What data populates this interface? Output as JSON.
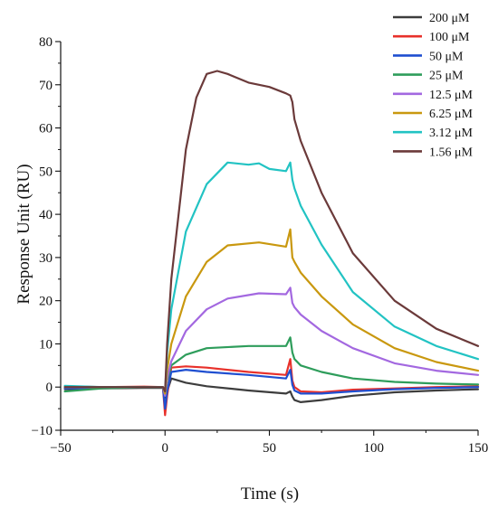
{
  "chart_data": {
    "type": "line",
    "xlabel": "Time (s)",
    "ylabel": "Response Unit (RU)",
    "xlim": [
      -50,
      150
    ],
    "ylim": [
      -10,
      80
    ],
    "xticks": [
      -50,
      0,
      50,
      100,
      150
    ],
    "yticks": [
      -10,
      0,
      10,
      20,
      30,
      40,
      50,
      60,
      70,
      80
    ],
    "grid": false,
    "legend_position": "top-right",
    "series": [
      {
        "name": "200 μM",
        "color": "#3d3d3d",
        "x": [
          -48,
          -30,
          -10,
          -1,
          0,
          1,
          3,
          10,
          20,
          40,
          58,
          60,
          61,
          62,
          65,
          75,
          90,
          110,
          130,
          150
        ],
        "y": [
          -0.5,
          -0.3,
          -0.2,
          -0.2,
          -2.5,
          -1.0,
          2.0,
          1.0,
          0.2,
          -0.8,
          -1.5,
          -1.0,
          -2.2,
          -3.0,
          -3.5,
          -3.0,
          -2.0,
          -1.2,
          -0.8,
          -0.5
        ]
      },
      {
        "name": "100 μM",
        "color": "#e8312b",
        "x": [
          -48,
          -30,
          -10,
          -1,
          0,
          1,
          3,
          10,
          20,
          40,
          58,
          60,
          61,
          62,
          65,
          75,
          90,
          110,
          130,
          150
        ],
        "y": [
          0.2,
          0.0,
          0.1,
          0.0,
          -6.5,
          -2.0,
          4.5,
          4.8,
          4.5,
          3.5,
          2.8,
          6.5,
          1.5,
          0.0,
          -1.0,
          -1.2,
          -0.6,
          -0.3,
          0.0,
          0.2
        ]
      },
      {
        "name": "50 μM",
        "color": "#1f4fd1",
        "x": [
          -48,
          -30,
          -10,
          -1,
          0,
          1,
          3,
          10,
          20,
          40,
          58,
          60,
          61,
          62,
          65,
          75,
          90,
          110,
          130,
          150
        ],
        "y": [
          -0.3,
          -0.2,
          0.0,
          0.0,
          -5.0,
          -1.0,
          3.5,
          4.0,
          3.5,
          2.8,
          2.0,
          4.0,
          0.5,
          -0.8,
          -1.5,
          -1.5,
          -1.0,
          -0.5,
          -0.2,
          0.0
        ]
      },
      {
        "name": "25 μM",
        "color": "#2e9d5b",
        "x": [
          -48,
          -30,
          -10,
          -1,
          0,
          1,
          3,
          10,
          20,
          40,
          58,
          60,
          61,
          62,
          65,
          75,
          90,
          110,
          130,
          150
        ],
        "y": [
          -1.0,
          -0.3,
          0.0,
          0.0,
          -2.0,
          1.5,
          5.0,
          7.5,
          9.0,
          9.5,
          9.5,
          11.5,
          8.0,
          6.5,
          5.0,
          3.5,
          2.0,
          1.2,
          0.8,
          0.6
        ]
      },
      {
        "name": "12.5 μM",
        "color": "#a368e0",
        "x": [
          -48,
          -30,
          -10,
          -1,
          0,
          1,
          3,
          10,
          20,
          30,
          45,
          58,
          60,
          61,
          62,
          65,
          75,
          90,
          110,
          130,
          150
        ],
        "y": [
          0.0,
          0.0,
          0.0,
          0.0,
          -2.0,
          2.0,
          6.0,
          13.0,
          18.0,
          20.5,
          21.7,
          21.5,
          23.0,
          19.5,
          18.5,
          16.8,
          13.0,
          9.0,
          5.5,
          3.8,
          2.8
        ]
      },
      {
        "name": "6.25 μM",
        "color": "#c9980f",
        "x": [
          -48,
          -30,
          -10,
          -1,
          0,
          1,
          3,
          10,
          20,
          30,
          45,
          58,
          60,
          61,
          62,
          65,
          75,
          90,
          110,
          130,
          150
        ],
        "y": [
          0.0,
          0.0,
          0.0,
          0.0,
          -1.5,
          4.0,
          10.0,
          21.0,
          29.0,
          32.8,
          33.5,
          32.5,
          36.5,
          30.0,
          29.0,
          26.5,
          21.0,
          14.5,
          9.0,
          5.8,
          3.8
        ]
      },
      {
        "name": "3.12 μM",
        "color": "#22c3c3",
        "x": [
          -48,
          -30,
          -10,
          -1,
          0,
          1,
          3,
          10,
          20,
          30,
          40,
          45,
          50,
          58,
          60,
          61,
          62,
          65,
          75,
          90,
          110,
          130,
          150
        ],
        "y": [
          0.3,
          0.0,
          0.0,
          0.0,
          -1.0,
          8.0,
          18.0,
          36.0,
          47.0,
          52.0,
          51.5,
          51.8,
          50.5,
          50.0,
          52.0,
          48.0,
          46.0,
          42.0,
          33.0,
          22.0,
          14.0,
          9.5,
          6.5
        ]
      },
      {
        "name": "1.56 μM",
        "color": "#6b3a3a",
        "x": [
          -48,
          -30,
          -10,
          -1,
          0,
          1,
          3,
          10,
          15,
          20,
          25,
          30,
          40,
          50,
          58,
          60,
          61,
          62,
          65,
          75,
          90,
          110,
          130,
          150
        ],
        "y": [
          0.0,
          0.0,
          0.0,
          0.0,
          -1.0,
          10.0,
          25.0,
          55.0,
          67.0,
          72.5,
          73.2,
          72.5,
          70.5,
          69.5,
          68.0,
          67.5,
          66.0,
          62.0,
          57.0,
          45.0,
          31.0,
          20.0,
          13.5,
          9.5
        ]
      }
    ]
  }
}
